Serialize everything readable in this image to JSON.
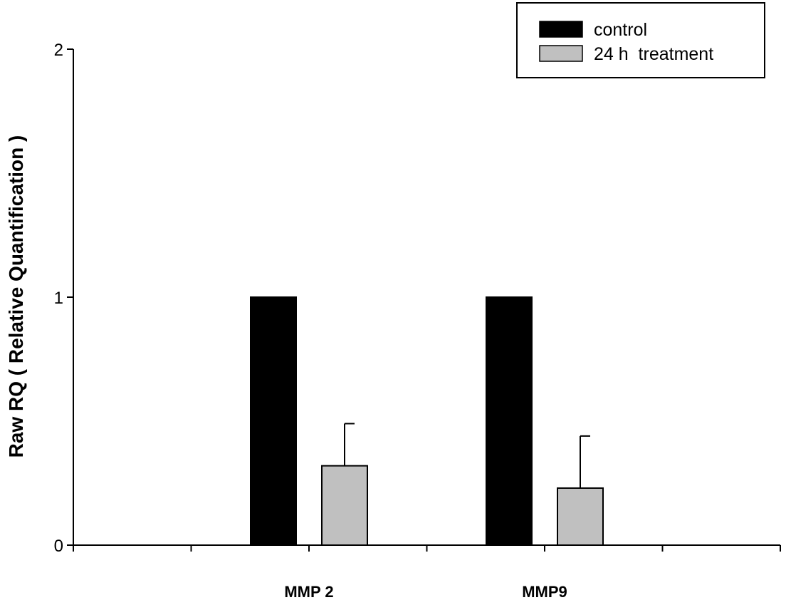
{
  "chart_data": {
    "type": "bar",
    "categories": [
      "MMP 2",
      "MMP9"
    ],
    "series": [
      {
        "name": "control",
        "values": [
          1.0,
          1.0
        ],
        "errors": [
          null,
          null
        ],
        "color": "#000000"
      },
      {
        "name": "24 h  treatment",
        "values": [
          0.32,
          0.23
        ],
        "errors": [
          0.17,
          0.21
        ],
        "color": "#c0c0c0"
      }
    ],
    "title": "",
    "xlabel": "",
    "ylabel": "Raw RQ ( Relative Quantification )",
    "ylim": [
      0,
      2
    ],
    "yticks": [
      "0",
      "1",
      "2"
    ],
    "grid": false,
    "legend_position": "top-right"
  }
}
